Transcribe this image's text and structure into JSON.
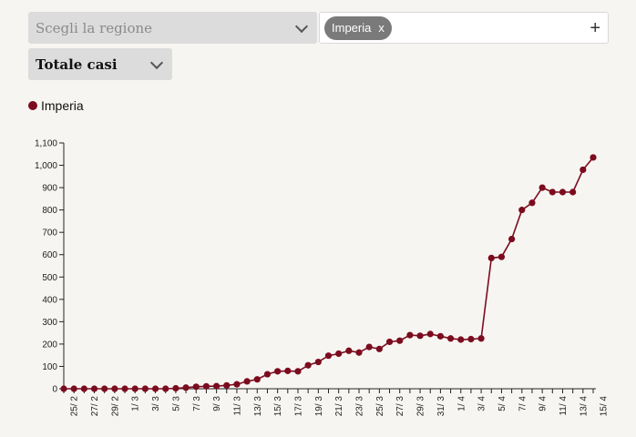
{
  "controls": {
    "region_placeholder": "Scegli la regione",
    "selected_tags": [
      {
        "label": "Imperia",
        "remove": "x"
      }
    ],
    "add_symbol": "+",
    "metric_value": "Totale casi"
  },
  "colors": {
    "series": "#7b0b1e",
    "axis": "#222222"
  },
  "chart_data": {
    "type": "line",
    "series": [
      {
        "name": "Imperia",
        "values": [
          0,
          0,
          0,
          0,
          0,
          0,
          0,
          0,
          0,
          0,
          0,
          2,
          5,
          9,
          11,
          12,
          15,
          20,
          33,
          42,
          65,
          78,
          80,
          78,
          105,
          120,
          148,
          157,
          170,
          162,
          187,
          178,
          210,
          215,
          240,
          237,
          245,
          235,
          225,
          220,
          222,
          225,
          585,
          590,
          670,
          800,
          832,
          900,
          880,
          880,
          880,
          980,
          1035
        ]
      }
    ],
    "x_tick_labels": [
      "25/ 2",
      "27/ 2",
      "29/ 2",
      "1/ 3",
      "3/ 3",
      "5/ 3",
      "7/ 3",
      "9/ 3",
      "11/ 3",
      "13/ 3",
      "15/ 3",
      "17/ 3",
      "19/ 3",
      "21/ 3",
      "23/ 3",
      "25/ 3",
      "27/ 3",
      "29/ 3",
      "31/ 3",
      "1/ 4",
      "3/ 4",
      "5/ 4",
      "7/ 4",
      "9/ 4",
      "11/ 4",
      "13/ 4",
      "15/ 4"
    ],
    "y_ticks": [
      0,
      100,
      200,
      300,
      400,
      500,
      600,
      700,
      800,
      900,
      1000,
      1100
    ],
    "y_tick_labels": [
      "0",
      "100",
      "200",
      "300",
      "400",
      "500",
      "600",
      "700",
      "800",
      "900",
      "1,000",
      "1,100"
    ],
    "ylim": [
      0,
      1100
    ],
    "grid": false,
    "legend": "top-left"
  }
}
